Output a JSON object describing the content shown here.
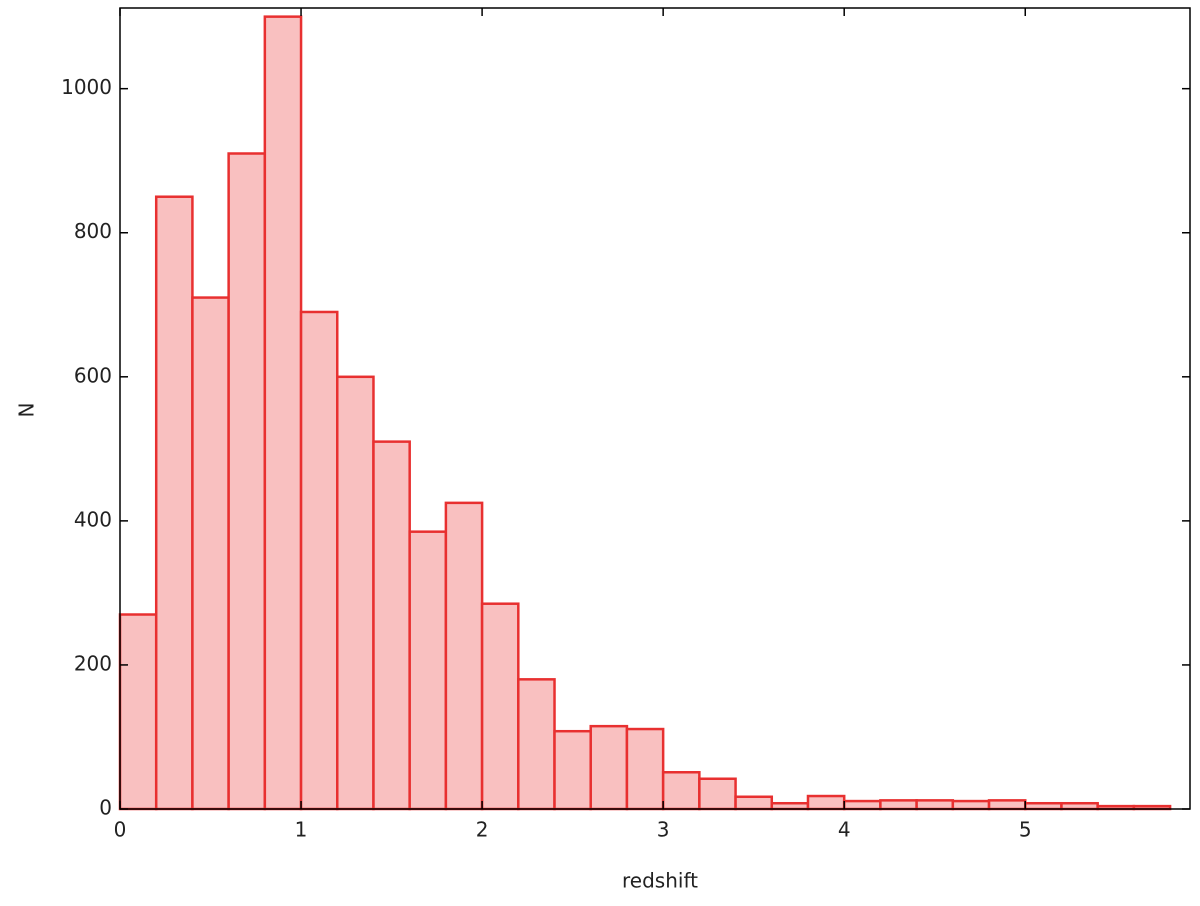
{
  "chart_data": {
    "type": "histogram",
    "x_label": "redshift",
    "y_label": "N",
    "bins": [
      0,
      0.2,
      0.4,
      0.6,
      0.8,
      1.0,
      1.2,
      1.4,
      1.6,
      1.8,
      2.0,
      2.2,
      2.4,
      2.6,
      2.8,
      3.0,
      3.2,
      3.4,
      3.6,
      3.8,
      4.0,
      4.2,
      4.4,
      4.6,
      4.8,
      5.0,
      5.2,
      5.4,
      5.6,
      5.8
    ],
    "counts": [
      270,
      850,
      710,
      910,
      1100,
      690,
      600,
      510,
      385,
      425,
      285,
      180,
      108,
      115,
      111,
      51,
      42,
      17,
      8,
      18,
      11,
      12,
      12,
      11,
      12,
      8,
      8,
      4,
      4
    ],
    "color": "#f9c0c0",
    "edge_color": "#e83030",
    "xlim": [
      0,
      5.91
    ],
    "ylim": [
      0,
      1112
    ],
    "xticks": [
      0,
      1,
      2,
      3,
      4,
      5
    ],
    "yticks": [
      0,
      200,
      400,
      600,
      800,
      1000
    ]
  }
}
